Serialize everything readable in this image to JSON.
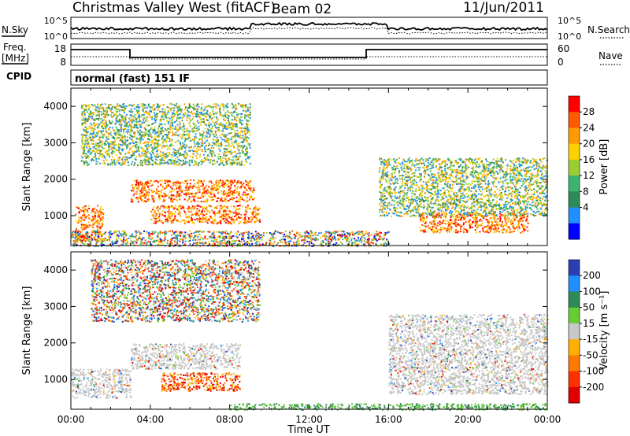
{
  "header": {
    "station": "Christmas Valley West (fitACF)",
    "beam": "Beam 02",
    "date": "11/Jun/2011"
  },
  "meta_panels": {
    "nsky_label": "N.Sky",
    "nsearch_label": "N.Search",
    "noise_ticks": [
      "10^5",
      "10^0"
    ],
    "freq_label": "Freq.",
    "freq_unit": "[MHz]",
    "freq_ticks": [
      "18",
      "8"
    ],
    "nave_label": "Nave",
    "nave_ticks": [
      "60",
      "0"
    ],
    "cpid_label": "CPID",
    "cpid_value": "normal (fast) 151 IF"
  },
  "chart_data": [
    {
      "type": "heatmap",
      "panel": "power",
      "ylabel": "Slant Range [km]",
      "xlabel": "",
      "xlim": [
        "00:00",
        "24:00"
      ],
      "ylim": [
        180,
        4500
      ],
      "y_ticks": [
        "1000",
        "2000",
        "3000",
        "4000"
      ],
      "colorbar": {
        "label": "Power [dB]",
        "ticks": [
          "28",
          "24",
          "20",
          "16",
          "12",
          "8",
          "4"
        ],
        "colors": [
          "#ff0000",
          "#ff5a00",
          "#ff9a00",
          "#ffd000",
          "#9acd32",
          "#3cb371",
          "#2e8b57",
          "#1e90ff",
          "#0000ff"
        ]
      },
      "scatter_bands": [
        {
          "t0": 0.2,
          "t1": 1.6,
          "r0": 300,
          "r1": 1300,
          "level": "high"
        },
        {
          "t0": 3.0,
          "t1": 9.2,
          "r0": 1400,
          "r1": 2000,
          "level": "high"
        },
        {
          "t0": 4.0,
          "t1": 9.5,
          "r0": 800,
          "r1": 1300,
          "level": "high"
        },
        {
          "t0": 0.5,
          "t1": 9.0,
          "r0": 2400,
          "r1": 4100,
          "level": "mid"
        },
        {
          "t0": 0.0,
          "t1": 16.0,
          "r0": 180,
          "r1": 600,
          "level": "low"
        },
        {
          "t0": 17.5,
          "t1": 23.0,
          "r0": 550,
          "r1": 1100,
          "level": "high"
        },
        {
          "t0": 15.5,
          "t1": 24.0,
          "r0": 1000,
          "r1": 2600,
          "level": "mid"
        }
      ]
    },
    {
      "type": "heatmap",
      "panel": "velocity",
      "ylabel": "Slant Range [km]",
      "xlabel": "Time UT",
      "x_ticks": [
        "00:00",
        "04:00",
        "08:00",
        "12:00",
        "16:00",
        "20:00",
        "00:00"
      ],
      "ylim": [
        180,
        4500
      ],
      "y_ticks": [
        "1000",
        "2000",
        "3000",
        "4000"
      ],
      "colorbar": {
        "label": "Velocity [m s⁻¹]",
        "ticks": [
          "200",
          "100",
          "50",
          "15",
          "-15",
          "-50",
          "-100",
          "-200"
        ],
        "colors": [
          "#2b3fb3",
          "#1e90ff",
          "#2e8b57",
          "#66cc33",
          "#c8c8c8",
          "#ffb000",
          "#ff7a00",
          "#ff3000",
          "#e00000"
        ]
      },
      "scatter_bands": [
        {
          "t0": 0.0,
          "t1": 3.0,
          "r0": 500,
          "r1": 1300,
          "level": "ground"
        },
        {
          "t0": 3.0,
          "t1": 8.5,
          "r0": 1300,
          "r1": 2000,
          "level": "ground"
        },
        {
          "t0": 4.5,
          "t1": 8.5,
          "r0": 700,
          "r1": 1200,
          "level": "negative"
        },
        {
          "t0": 1.0,
          "t1": 9.5,
          "r0": 2600,
          "r1": 4300,
          "level": "mixed"
        },
        {
          "t0": 16.0,
          "t1": 24.0,
          "r0": 600,
          "r1": 2800,
          "level": "ground"
        },
        {
          "t0": 8.0,
          "t1": 24.0,
          "r0": 180,
          "r1": 350,
          "level": "positive"
        }
      ]
    }
  ]
}
